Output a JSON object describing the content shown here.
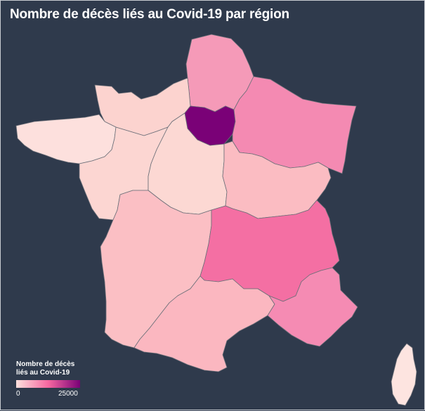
{
  "title": "Nombre de décès liés au Covid-19 par région",
  "legend": {
    "title_line1": "Nombre de décès",
    "title_line2": "liés au Covid-19",
    "min_label": "0",
    "max_label": "25000",
    "gradient": [
      "#fde0dd",
      "#f768a1",
      "#7a0177"
    ]
  },
  "colors": {
    "background": "#2f3a4c",
    "border": "#6b6f78"
  },
  "regions": [
    {
      "name": "Hauts-de-France",
      "fill": "#f59ab8"
    },
    {
      "name": "Normandie",
      "fill": "#fcd3cf"
    },
    {
      "name": "Île-de-France",
      "fill": "#7a0177"
    },
    {
      "name": "Grand Est",
      "fill": "#f48ab2"
    },
    {
      "name": "Bretagne",
      "fill": "#fde0dd"
    },
    {
      "name": "Pays de la Loire",
      "fill": "#fcd6d2"
    },
    {
      "name": "Centre-Val de Loire",
      "fill": "#fcd8d3"
    },
    {
      "name": "Bourgogne-Franche-Comté",
      "fill": "#fbbcc2"
    },
    {
      "name": "Nouvelle-Aquitaine",
      "fill": "#fbbfc4"
    },
    {
      "name": "Auvergne-Rhône-Alpes",
      "fill": "#f46fa3"
    },
    {
      "name": "Occitanie",
      "fill": "#fbb7c0"
    },
    {
      "name": "Provence-Alpes-Côte d'Azur",
      "fill": "#f58bb3"
    },
    {
      "name": "Corse",
      "fill": "#fde4e0"
    }
  ]
}
